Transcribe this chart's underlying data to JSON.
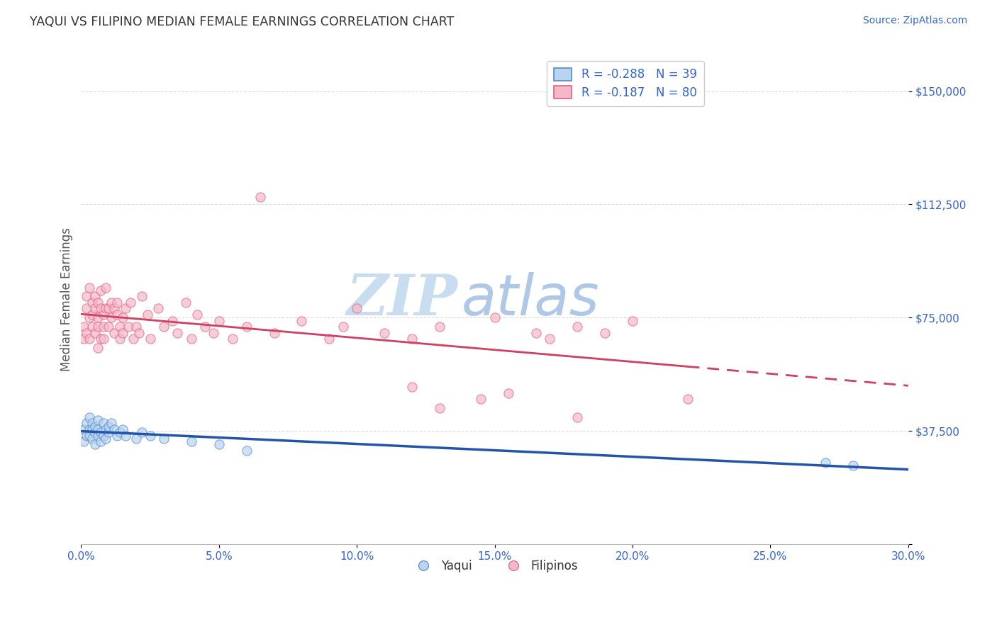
{
  "title": "YAQUI VS FILIPINO MEDIAN FEMALE EARNINGS CORRELATION CHART",
  "source_text": "Source: ZipAtlas.com",
  "ylabel": "Median Female Earnings",
  "xlim": [
    0.0,
    0.3
  ],
  "ylim": [
    0,
    162000
  ],
  "yticks": [
    0,
    37500,
    75000,
    112500,
    150000
  ],
  "ytick_labels": [
    "",
    "$37,500",
    "$75,000",
    "$112,500",
    "$150,000"
  ],
  "xticks": [
    0.0,
    0.05,
    0.1,
    0.15,
    0.2,
    0.25,
    0.3
  ],
  "xtick_labels": [
    "0.0%",
    "5.0%",
    "10.0%",
    "15.0%",
    "20.0%",
    "25.0%",
    "30.0%"
  ],
  "yaqui_fill_color": "#b8d4f0",
  "yaqui_edge_color": "#5588cc",
  "filipino_fill_color": "#f5b8c8",
  "filipino_edge_color": "#e06080",
  "yaqui_line_color": "#2255aa",
  "filipino_line_color": "#d04060",
  "legend_R_yaqui": "R = -0.288",
  "legend_N_yaqui": "N = 39",
  "legend_R_filipino": "R = -0.187",
  "legend_N_filipino": "N = 80",
  "watermark_zip": "ZIP",
  "watermark_atlas": "atlas",
  "watermark_color_zip": "#c8ddf0",
  "watermark_color_atlas": "#b0c8e8",
  "title_color": "#333333",
  "source_color": "#3366cc",
  "axis_label_color": "#3366cc",
  "tick_label_color": "#3366cc",
  "background_color": "#ffffff",
  "grid_color": "#cccccc",
  "yaqui_x": [
    0.001,
    0.001,
    0.002,
    0.002,
    0.003,
    0.003,
    0.003,
    0.004,
    0.004,
    0.004,
    0.005,
    0.005,
    0.005,
    0.006,
    0.006,
    0.006,
    0.007,
    0.007,
    0.008,
    0.008,
    0.009,
    0.009,
    0.01,
    0.01,
    0.011,
    0.012,
    0.013,
    0.014,
    0.015,
    0.016,
    0.02,
    0.022,
    0.025,
    0.03,
    0.04,
    0.05,
    0.06,
    0.27,
    0.28
  ],
  "yaqui_y": [
    38000,
    34000,
    40000,
    36000,
    38000,
    42000,
    36000,
    40000,
    38000,
    35000,
    37000,
    39000,
    33000,
    41000,
    36000,
    38000,
    37000,
    34000,
    40000,
    36000,
    38000,
    35000,
    37000,
    39000,
    40000,
    38000,
    36000,
    37000,
    38000,
    36000,
    35000,
    37000,
    36000,
    35000,
    34000,
    33000,
    31000,
    27000,
    26000
  ],
  "filipino_x": [
    0.001,
    0.001,
    0.002,
    0.002,
    0.002,
    0.003,
    0.003,
    0.003,
    0.004,
    0.004,
    0.004,
    0.005,
    0.005,
    0.005,
    0.006,
    0.006,
    0.006,
    0.006,
    0.007,
    0.007,
    0.007,
    0.008,
    0.008,
    0.008,
    0.009,
    0.009,
    0.01,
    0.01,
    0.011,
    0.011,
    0.012,
    0.012,
    0.013,
    0.013,
    0.014,
    0.014,
    0.015,
    0.015,
    0.016,
    0.017,
    0.018,
    0.019,
    0.02,
    0.021,
    0.022,
    0.024,
    0.025,
    0.028,
    0.03,
    0.033,
    0.035,
    0.038,
    0.04,
    0.042,
    0.045,
    0.048,
    0.05,
    0.055,
    0.06,
    0.065,
    0.07,
    0.08,
    0.09,
    0.095,
    0.1,
    0.11,
    0.12,
    0.13,
    0.15,
    0.165,
    0.17,
    0.18,
    0.19,
    0.2,
    0.145,
    0.155,
    0.12,
    0.22,
    0.18,
    0.13
  ],
  "filipino_y": [
    72000,
    68000,
    78000,
    82000,
    70000,
    75000,
    85000,
    68000,
    80000,
    72000,
    76000,
    70000,
    78000,
    82000,
    65000,
    75000,
    80000,
    72000,
    78000,
    68000,
    84000,
    72000,
    76000,
    68000,
    85000,
    78000,
    72000,
    78000,
    80000,
    75000,
    78000,
    70000,
    76000,
    80000,
    68000,
    72000,
    75000,
    70000,
    78000,
    72000,
    80000,
    68000,
    72000,
    70000,
    82000,
    76000,
    68000,
    78000,
    72000,
    74000,
    70000,
    80000,
    68000,
    76000,
    72000,
    70000,
    74000,
    68000,
    72000,
    115000,
    70000,
    74000,
    68000,
    72000,
    78000,
    70000,
    68000,
    72000,
    75000,
    70000,
    68000,
    72000,
    70000,
    74000,
    48000,
    50000,
    52000,
    48000,
    42000,
    45000
  ]
}
